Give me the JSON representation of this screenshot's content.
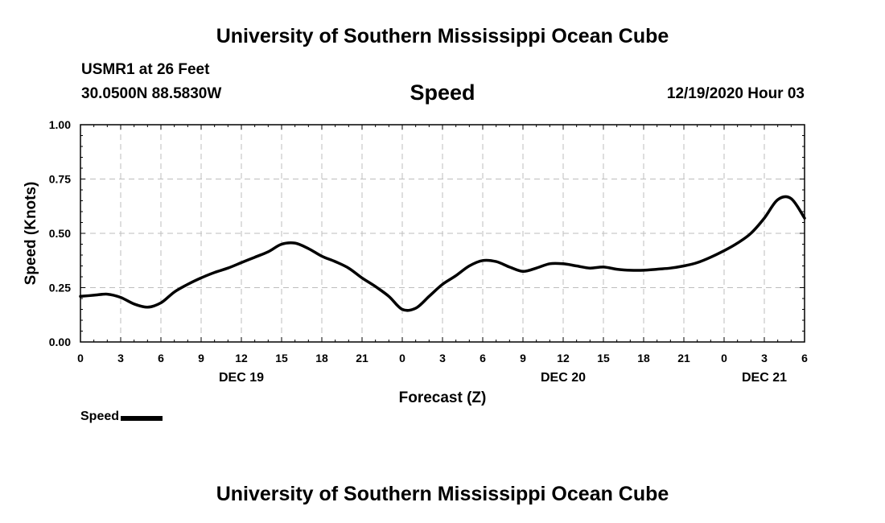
{
  "header": {
    "title": "University of Southern Mississippi Ocean Cube",
    "station": "USMR1 at 26 Feet",
    "coordinates": "30.0500N 88.5830W",
    "run_time": "12/19/2020 Hour 03"
  },
  "footer": {
    "title": "University of Southern Mississippi Ocean Cube"
  },
  "legend": {
    "label": "Speed"
  },
  "chart_data": {
    "type": "line",
    "title": "Speed",
    "xlabel": "Forecast (Z)",
    "ylabel": "Speed (Knots)",
    "xlim": [
      0,
      54
    ],
    "ylim": [
      0,
      1
    ],
    "grid": true,
    "legend_position": "bottom-left",
    "line_color": "#000000",
    "y_ticks": [
      "0.00",
      "0.25",
      "0.50",
      "0.75",
      "1.00"
    ],
    "x_ticks": [
      {
        "hour": 0,
        "label": "0"
      },
      {
        "hour": 3,
        "label": "3"
      },
      {
        "hour": 6,
        "label": "6"
      },
      {
        "hour": 9,
        "label": "9"
      },
      {
        "hour": 12,
        "label": "12"
      },
      {
        "hour": 15,
        "label": "15"
      },
      {
        "hour": 18,
        "label": "18"
      },
      {
        "hour": 21,
        "label": "21"
      },
      {
        "hour": 24,
        "label": "0"
      },
      {
        "hour": 27,
        "label": "3"
      },
      {
        "hour": 30,
        "label": "6"
      },
      {
        "hour": 33,
        "label": "9"
      },
      {
        "hour": 36,
        "label": "12"
      },
      {
        "hour": 39,
        "label": "15"
      },
      {
        "hour": 42,
        "label": "18"
      },
      {
        "hour": 45,
        "label": "21"
      },
      {
        "hour": 48,
        "label": "0"
      },
      {
        "hour": 51,
        "label": "3"
      },
      {
        "hour": 54,
        "label": "6"
      }
    ],
    "date_labels": [
      {
        "hour": 12,
        "label": "DEC 19"
      },
      {
        "hour": 36,
        "label": "DEC 20"
      },
      {
        "hour": 51,
        "label": "DEC 21"
      }
    ],
    "series": [
      {
        "name": "Speed",
        "x": [
          0,
          1,
          2,
          3,
          4,
          5,
          6,
          7,
          8,
          9,
          10,
          11,
          12,
          13,
          14,
          15,
          16,
          17,
          18,
          19,
          20,
          21,
          22,
          23,
          24,
          25,
          26,
          27,
          28,
          29,
          30,
          31,
          32,
          33,
          34,
          35,
          36,
          37,
          38,
          39,
          40,
          41,
          42,
          43,
          44,
          45,
          46,
          47,
          48,
          49,
          50,
          51,
          52,
          53,
          54
        ],
        "values": [
          0.21,
          0.215,
          0.22,
          0.205,
          0.175,
          0.16,
          0.18,
          0.23,
          0.265,
          0.295,
          0.32,
          0.34,
          0.365,
          0.39,
          0.415,
          0.45,
          0.455,
          0.43,
          0.395,
          0.37,
          0.34,
          0.295,
          0.255,
          0.21,
          0.15,
          0.155,
          0.21,
          0.265,
          0.305,
          0.35,
          0.375,
          0.37,
          0.345,
          0.325,
          0.34,
          0.36,
          0.36,
          0.35,
          0.34,
          0.345,
          0.335,
          0.33,
          0.33,
          0.335,
          0.34,
          0.35,
          0.365,
          0.39,
          0.42,
          0.455,
          0.5,
          0.57,
          0.655,
          0.66,
          0.57
        ]
      }
    ]
  }
}
